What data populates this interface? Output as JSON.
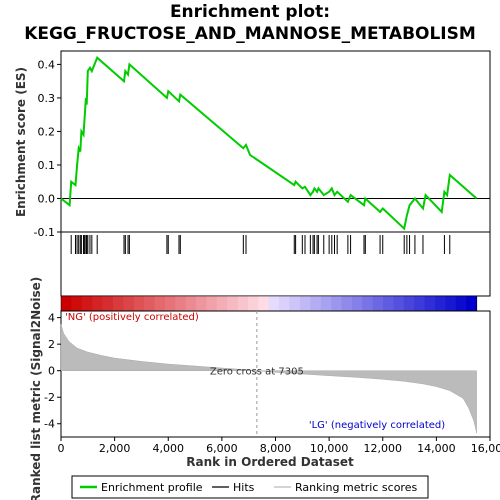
{
  "chart_data": {
    "type": "line",
    "title_line1": "Enrichment plot:",
    "title_line2": "KEGG_FRUCTOSE_AND_MANNOSE_METABOLISM",
    "es_panel": {
      "ylabel": "Enrichment score (ES)",
      "ylim": [
        -0.1,
        0.44
      ],
      "yticks": [
        -0.1,
        0.0,
        0.1,
        0.2,
        0.3,
        0.4
      ],
      "ytick_labels": [
        "-0.1",
        "0.0",
        "0.1",
        "0.2",
        "0.3",
        "0.4"
      ],
      "series": [
        {
          "name": "Enrichment profile",
          "color": "#00cc00",
          "x": [
            0,
            320,
            380,
            540,
            600,
            660,
            720,
            760,
            840,
            880,
            930,
            960,
            1000,
            1080,
            1150,
            1350,
            2350,
            2400,
            2500,
            2550,
            3950,
            4000,
            4400,
            4450,
            6800,
            6900,
            7050,
            8700,
            8750,
            9000,
            9100,
            9300,
            9400,
            9450,
            9550,
            9600,
            9800,
            10000,
            10100,
            10200,
            10300,
            10700,
            10800,
            11300,
            11350,
            11900,
            12000,
            12800,
            12900,
            13000,
            13200,
            13500,
            13600,
            14200,
            14300,
            14400,
            14500,
            15500
          ],
          "y": [
            0.0,
            -0.02,
            0.05,
            0.04,
            0.1,
            0.15,
            0.14,
            0.2,
            0.19,
            0.24,
            0.3,
            0.28,
            0.38,
            0.39,
            0.38,
            0.42,
            0.35,
            0.38,
            0.37,
            0.4,
            0.3,
            0.32,
            0.29,
            0.31,
            0.15,
            0.16,
            0.13,
            0.04,
            0.05,
            0.03,
            0.035,
            0.01,
            0.02,
            0.03,
            0.02,
            0.03,
            0.01,
            0.02,
            0.03,
            0.01,
            0.02,
            -0.01,
            0.01,
            -0.02,
            0.0,
            -0.04,
            -0.03,
            -0.09,
            -0.05,
            -0.02,
            0.0,
            -0.03,
            0.01,
            -0.04,
            0.02,
            0.01,
            0.07,
            0.0
          ]
        }
      ]
    },
    "hits_panel": {
      "hit_positions": [
        380,
        540,
        600,
        660,
        720,
        760,
        840,
        880,
        930,
        960,
        1000,
        1080,
        1150,
        1350,
        2350,
        2400,
        2500,
        2550,
        3950,
        4000,
        4400,
        4450,
        6800,
        6900,
        8700,
        8750,
        9000,
        9100,
        9300,
        9400,
        9450,
        9550,
        9600,
        9800,
        10000,
        10100,
        10200,
        10300,
        10700,
        10800,
        11300,
        11350,
        11900,
        12000,
        12800,
        12900,
        13000,
        13200,
        13500,
        14300,
        14500
      ]
    },
    "ranked_metric_panel": {
      "ylabel": "Ranked list metric (Signal2Noise)",
      "xlabel": "Rank in Ordered Dataset",
      "ylim": [
        -5,
        4.5
      ],
      "yticks": [
        -4,
        -2,
        0,
        2,
        4
      ],
      "ytick_labels": [
        "-4",
        "-2",
        "0",
        "2",
        "4"
      ],
      "xticks": [
        0,
        2000,
        4000,
        6000,
        8000,
        10000,
        12000,
        14000,
        16000
      ],
      "xtick_labels": [
        "0",
        "2,000",
        "4,000",
        "6,000",
        "8,000",
        "10,000",
        "12,000",
        "14,000",
        "16,000"
      ],
      "xlim": [
        0,
        16000
      ],
      "metric_curve": {
        "x": [
          0,
          100,
          300,
          600,
          1000,
          1500,
          2000,
          3000,
          4000,
          5000,
          6000,
          7000,
          7305,
          8000,
          9000,
          10000,
          11000,
          12000,
          12800,
          13500,
          14000,
          14500,
          15000,
          15200,
          15400,
          15500
        ],
        "y": [
          3.5,
          2.8,
          2.2,
          1.7,
          1.4,
          1.15,
          0.95,
          0.7,
          0.5,
          0.35,
          0.2,
          0.06,
          0.0,
          -0.12,
          -0.25,
          -0.38,
          -0.5,
          -0.65,
          -0.8,
          -1.0,
          -1.2,
          -1.5,
          -2.1,
          -2.8,
          -3.8,
          -4.7
        ]
      },
      "zero_cross_label": "Zero cross at 7305",
      "zero_cross_x": 7305,
      "pos_label": "'NG' (positively correlated)",
      "neg_label": "'LG' (negatively correlated)",
      "pos_color": "#cc0000",
      "neg_color": "#0000cc"
    },
    "total_ranks": 15500,
    "legend": {
      "items": [
        {
          "label": "Enrichment profile",
          "color": "#00cc00"
        },
        {
          "label": "Hits",
          "color": "#000000"
        },
        {
          "label": "Ranking metric scores",
          "color": "#bbbbbb"
        }
      ]
    },
    "grid": false
  }
}
